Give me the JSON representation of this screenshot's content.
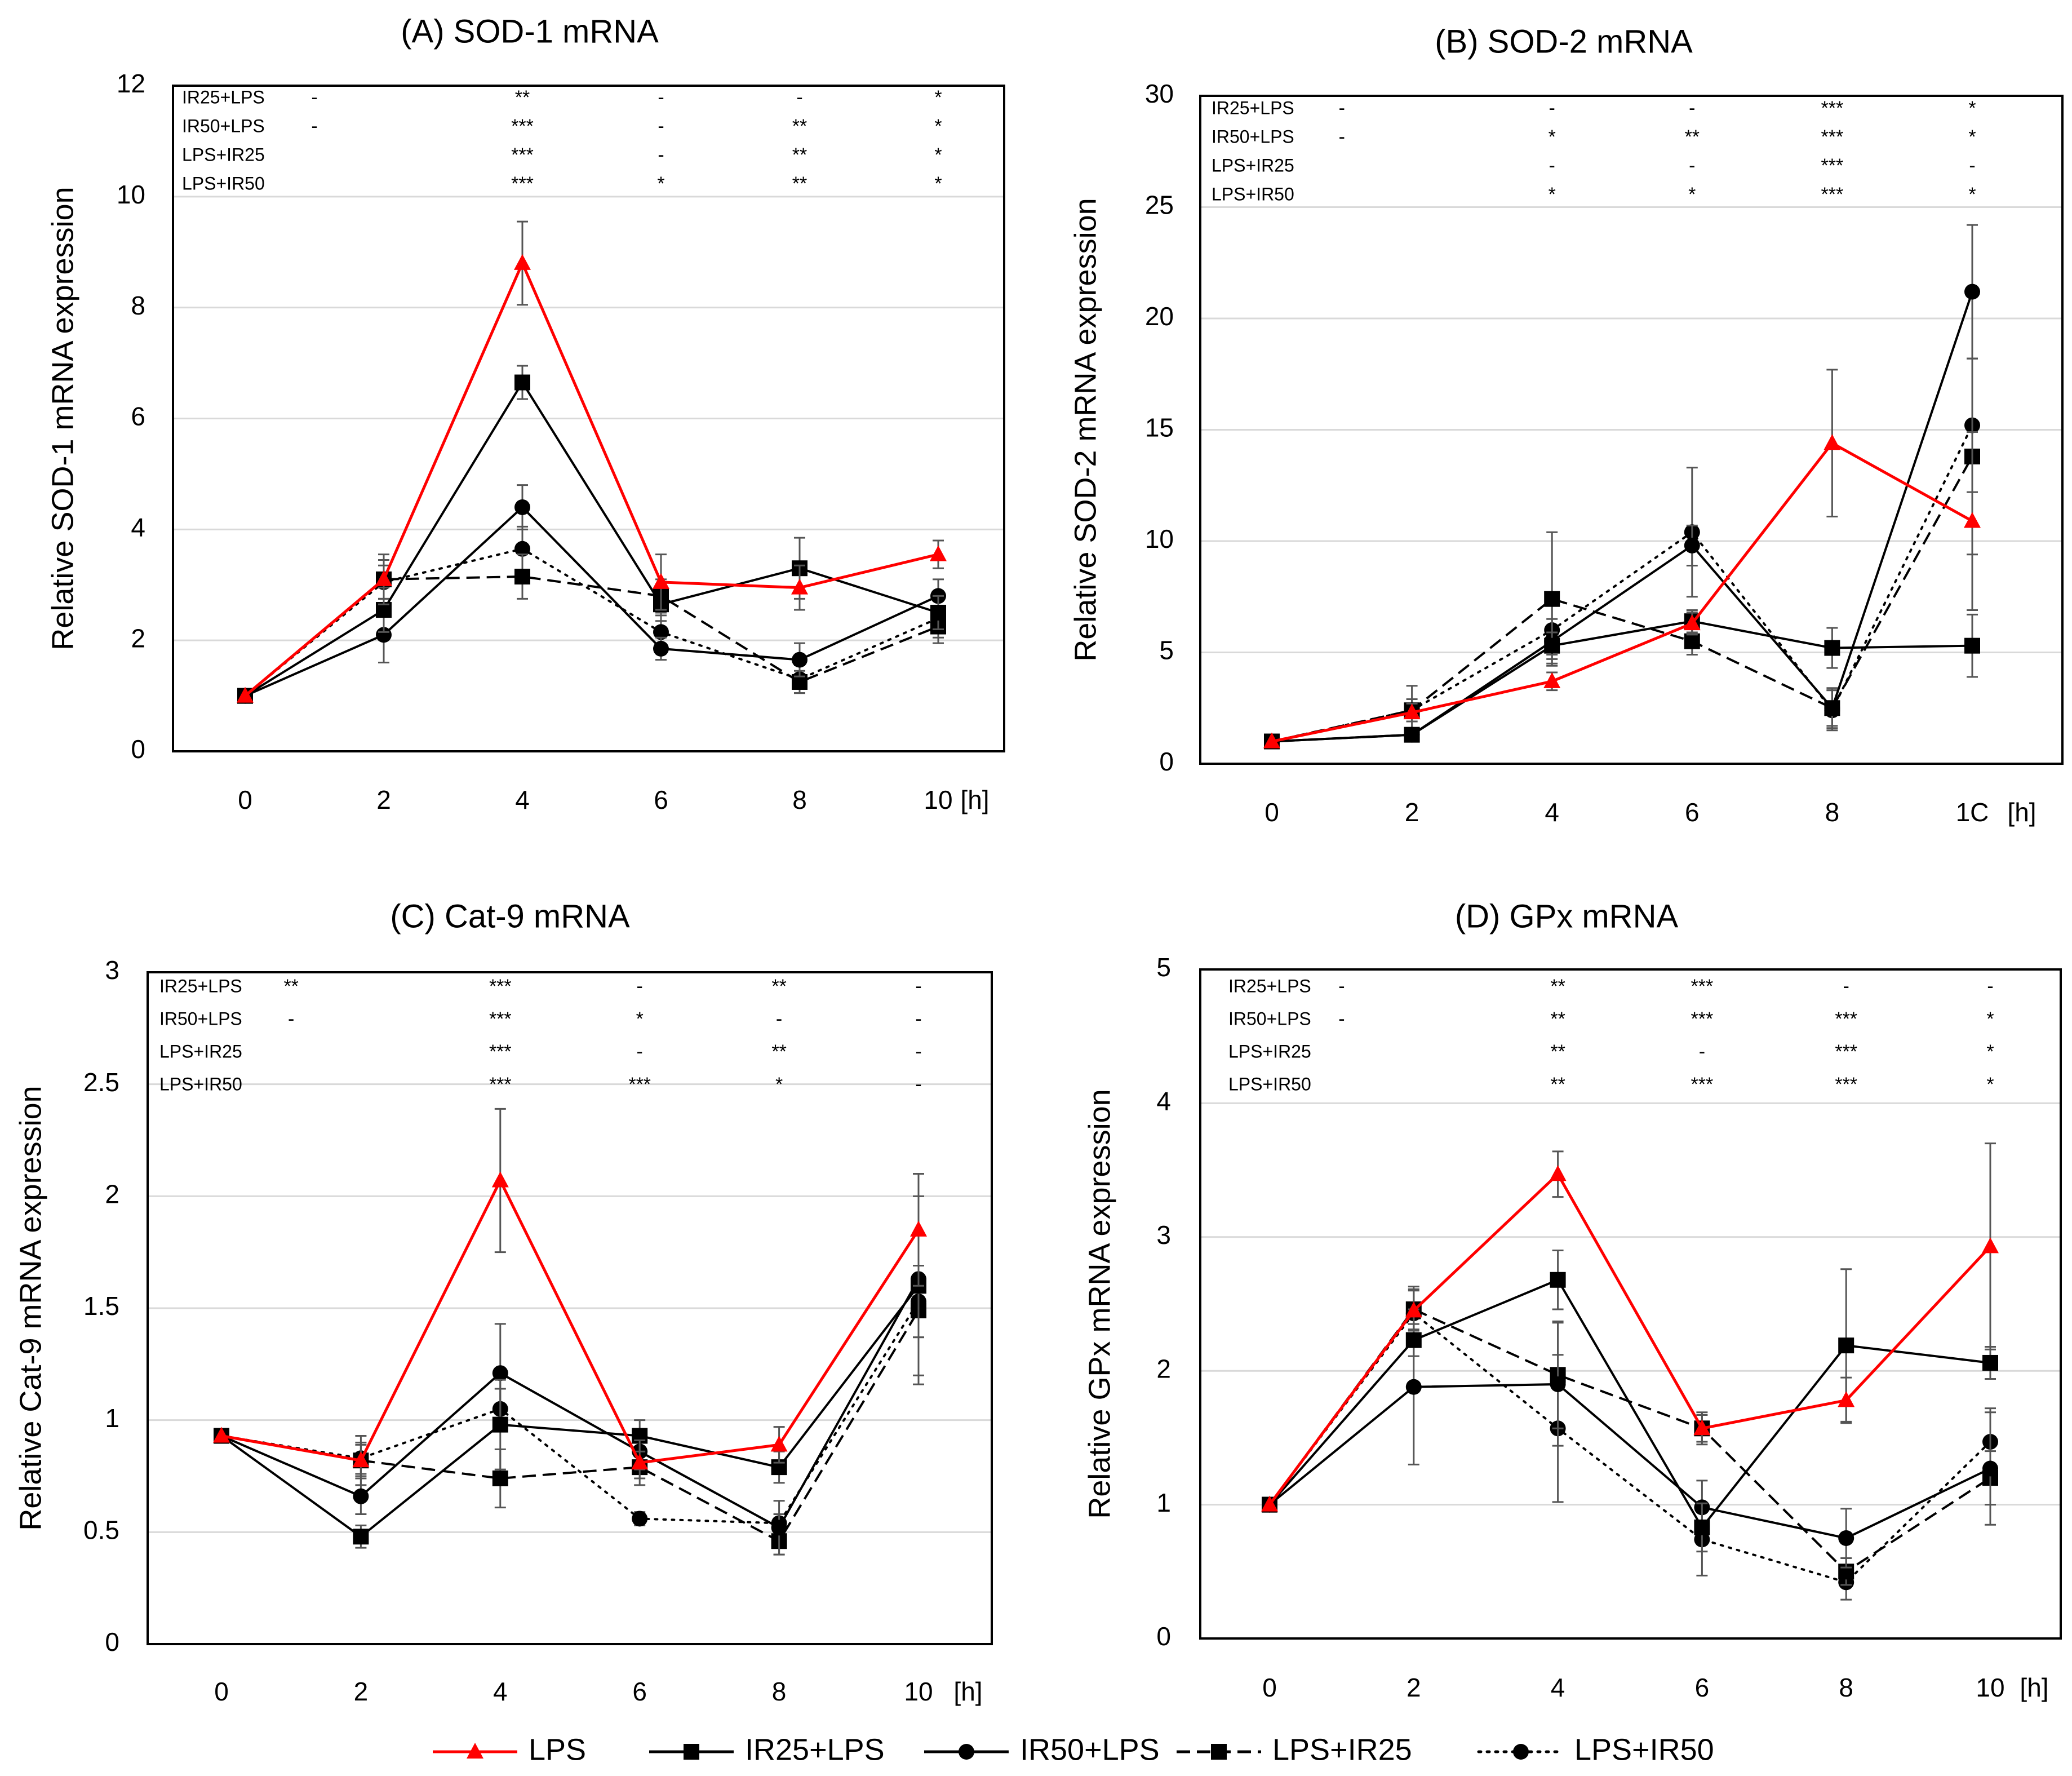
{
  "figure": {
    "legend": [
      {
        "name": "LPS",
        "color": "#ff0000",
        "marker": "triangle",
        "dash": "solid"
      },
      {
        "name": "IR25+LPS",
        "color": "#000000",
        "marker": "square",
        "dash": "solid"
      },
      {
        "name": "IR50+LPS",
        "color": "#000000",
        "marker": "circle",
        "dash": "solid"
      },
      {
        "name": "LPS+IR25",
        "color": "#000000",
        "marker": "square",
        "dash": "dashed"
      },
      {
        "name": "LPS+IR50",
        "color": "#000000",
        "marker": "circle",
        "dash": "dotted"
      }
    ]
  },
  "chart_data": [
    {
      "id": "A",
      "type": "line",
      "title": "(A) SOD-1 mRNA",
      "ylabel": "Relative SOD-1  mRNA expression",
      "xlabel": "",
      "x": [
        "0",
        "2",
        "4",
        "6",
        "8",
        "10"
      ],
      "x_unit": "[h]",
      "ylim": [
        0,
        12
      ],
      "yticks": [
        "0",
        "2",
        "4",
        "6",
        "8",
        "10",
        "12"
      ],
      "grid": true,
      "series": [
        {
          "name": "LPS",
          "values": [
            1.0,
            3.1,
            8.8,
            3.05,
            2.95,
            3.55
          ],
          "err": [
            0,
            0.45,
            0.75,
            0.5,
            0.4,
            0.25
          ]
        },
        {
          "name": "IR25+LPS",
          "values": [
            1.0,
            2.55,
            6.65,
            2.65,
            3.3,
            2.5
          ],
          "err": [
            0,
            0.4,
            0.3,
            0.3,
            0.55,
            0.3
          ]
        },
        {
          "name": "IR50+LPS",
          "values": [
            1.0,
            2.1,
            4.4,
            1.85,
            1.65,
            2.8
          ],
          "err": [
            0,
            0.5,
            0.4,
            0.2,
            0.3,
            0.3
          ]
        },
        {
          "name": "LPS+IR25",
          "values": [
            1.0,
            3.1,
            3.15,
            2.8,
            1.25,
            2.25
          ],
          "err": [
            0,
            0.35,
            0.4,
            0.3,
            0.2,
            0.3
          ]
        },
        {
          "name": "LPS+IR50",
          "values": [
            1.0,
            3.05,
            3.65,
            2.15,
            1.3,
            2.4
          ],
          "err": [
            0,
            0.3,
            0.4,
            0.3,
            0.25,
            0.35
          ]
        }
      ],
      "significance": [
        {
          "label": "IR25+LPS",
          "marks": [
            "-",
            "**",
            "-",
            "-",
            "*"
          ]
        },
        {
          "label": "IR50+LPS",
          "marks": [
            "-",
            "***",
            "-",
            "**",
            "*"
          ]
        },
        {
          "label": "LPS+IR25",
          "marks": [
            "",
            "***",
            "-",
            "**",
            "*"
          ]
        },
        {
          "label": "LPS+IR50",
          "marks": [
            "",
            "***",
            "*",
            "**",
            "*"
          ]
        }
      ]
    },
    {
      "id": "B",
      "type": "line",
      "title": "(B) SOD-2 mRNA",
      "ylabel": "Relative SOD-2  mRNA expression",
      "xlabel": "",
      "x": [
        "0",
        "2",
        "4",
        "6",
        "8",
        "1C"
      ],
      "x_unit": "[h]",
      "ylim": [
        0,
        30
      ],
      "yticks": [
        "0",
        "5",
        "10",
        "15",
        "20",
        "25",
        "30"
      ],
      "grid": true,
      "series": [
        {
          "name": "LPS",
          "values": [
            1.0,
            2.3,
            3.7,
            6.3,
            14.4,
            10.9
          ],
          "err": [
            0,
            0.4,
            0.4,
            0.5,
            3.3,
            4.0
          ]
        },
        {
          "name": "IR25+LPS",
          "values": [
            1.0,
            1.3,
            5.3,
            6.4,
            5.2,
            5.3
          ],
          "err": [
            0,
            0.3,
            0.6,
            0.5,
            0.9,
            1.4
          ]
        },
        {
          "name": "IR50+LPS",
          "values": [
            1.0,
            1.3,
            5.5,
            9.8,
            2.5,
            21.2
          ],
          "err": [
            0,
            0.3,
            1.0,
            0.9,
            0.9,
            3.0
          ]
        },
        {
          "name": "LPS+IR25",
          "values": [
            1.0,
            2.4,
            7.4,
            5.5,
            2.5,
            13.8
          ],
          "err": [
            0,
            1.1,
            3.0,
            0.6,
            0.8,
            4.4
          ]
        },
        {
          "name": "LPS+IR50",
          "values": [
            1.0,
            2.4,
            6.0,
            10.4,
            2.4,
            15.2
          ],
          "err": [
            0,
            0.5,
            1.1,
            2.9,
            0.9,
            3.0
          ]
        }
      ],
      "significance": [
        {
          "label": "IR25+LPS",
          "marks": [
            "-",
            "-",
            "-",
            "***",
            "*"
          ]
        },
        {
          "label": "IR50+LPS",
          "marks": [
            "-",
            "*",
            "**",
            "***",
            "*"
          ]
        },
        {
          "label": "LPS+IR25",
          "marks": [
            "",
            "-",
            "-",
            "***",
            "-"
          ]
        },
        {
          "label": "LPS+IR50",
          "marks": [
            "",
            "*",
            "*",
            "***",
            "*"
          ]
        }
      ]
    },
    {
      "id": "C",
      "type": "line",
      "title": "(C) Cat-9 mRNA",
      "ylabel": "Relative Cat-9  mRNA expression",
      "xlabel": "",
      "x": [
        "0",
        "2",
        "4",
        "6",
        "8",
        "10"
      ],
      "x_unit": "[h]",
      "ylim": [
        0,
        3
      ],
      "yticks": [
        "0",
        "0.5",
        "1",
        "1.5",
        "2",
        "2.5",
        "3"
      ],
      "grid": true,
      "series": [
        {
          "name": "LPS",
          "values": [
            0.93,
            0.82,
            2.07,
            0.81,
            0.89,
            1.85
          ],
          "err": [
            0,
            0.11,
            0.32,
            0.1,
            0.08,
            0.25
          ]
        },
        {
          "name": "IR25+LPS",
          "values": [
            0.93,
            0.48,
            0.98,
            0.93,
            0.79,
            1.6
          ],
          "err": [
            0,
            0.05,
            0.2,
            0.07,
            0.07,
            0.4
          ]
        },
        {
          "name": "IR50+LPS",
          "values": [
            0.93,
            0.66,
            1.21,
            0.86,
            0.52,
            1.63
          ],
          "err": [
            0,
            0.08,
            0.22,
            0.08,
            0.12,
            0.47
          ]
        },
        {
          "name": "LPS+IR25",
          "values": [
            0.93,
            0.82,
            0.74,
            0.79,
            0.46,
            1.49
          ],
          "err": [
            0,
            0.07,
            0.13,
            0.05,
            0.06,
            0.12
          ]
        },
        {
          "name": "LPS+IR50",
          "values": [
            0.93,
            0.83,
            1.05,
            0.56,
            0.54,
            1.53
          ],
          "err": [
            0,
            0.07,
            0.09,
            0.03,
            0.04,
            0.16
          ]
        }
      ],
      "significance": [
        {
          "label": "IR25+LPS",
          "marks": [
            "**",
            "***",
            "-",
            "**",
            "-"
          ]
        },
        {
          "label": "IR50+LPS",
          "marks": [
            "-",
            "***",
            "*",
            "-",
            "-"
          ]
        },
        {
          "label": "LPS+IR25",
          "marks": [
            "",
            "***",
            "-",
            "**",
            "-"
          ]
        },
        {
          "label": "LPS+IR50",
          "marks": [
            "",
            "***",
            "***",
            "*",
            "-"
          ]
        }
      ]
    },
    {
      "id": "D",
      "type": "line",
      "title": "(D) GPx mRNA",
      "ylabel": "Relative GPx mRNA expression",
      "xlabel": "",
      "x": [
        "0",
        "2",
        "4",
        "6",
        "8",
        "10"
      ],
      "x_unit": "[h]",
      "ylim": [
        0,
        5
      ],
      "yticks": [
        "0",
        "1",
        "2",
        "3",
        "4",
        "5"
      ],
      "grid": true,
      "series": [
        {
          "name": "LPS",
          "values": [
            1.0,
            2.45,
            3.47,
            1.57,
            1.78,
            2.93
          ],
          "err": [
            0,
            0.15,
            0.17,
            0.1,
            0.17,
            0.77
          ]
        },
        {
          "name": "IR25+LPS",
          "values": [
            1.0,
            2.23,
            2.68,
            0.83,
            2.19,
            2.06
          ],
          "err": [
            0,
            0.12,
            0.22,
            0.18,
            0.57,
            0.12
          ]
        },
        {
          "name": "IR50+LPS",
          "values": [
            1.0,
            1.88,
            1.9,
            0.98,
            0.75,
            1.27
          ],
          "err": [
            0,
            0.58,
            0.46,
            0.2,
            0.22,
            0.42
          ]
        },
        {
          "name": "LPS+IR25",
          "values": [
            1.0,
            2.46,
            1.97,
            1.57,
            0.5,
            1.2
          ],
          "err": [
            0,
            0.15,
            0.4,
            0.12,
            0.1,
            0.2
          ]
        },
        {
          "name": "LPS+IR50",
          "values": [
            1.0,
            2.43,
            1.57,
            0.74,
            0.42,
            1.47
          ],
          "err": [
            0,
            0.2,
            0.55,
            0.27,
            0.13,
            0.25
          ]
        }
      ],
      "significance": [
        {
          "label": "IR25+LPS",
          "marks": [
            "-",
            "**",
            "***",
            "-",
            "-"
          ]
        },
        {
          "label": "IR50+LPS",
          "marks": [
            "-",
            "**",
            "***",
            "***",
            "*"
          ]
        },
        {
          "label": "LPS+IR25",
          "marks": [
            "",
            "**",
            "-",
            "***",
            "*"
          ]
        },
        {
          "label": "LPS+IR50",
          "marks": [
            "",
            "**",
            "***",
            "***",
            "*"
          ]
        }
      ]
    }
  ]
}
